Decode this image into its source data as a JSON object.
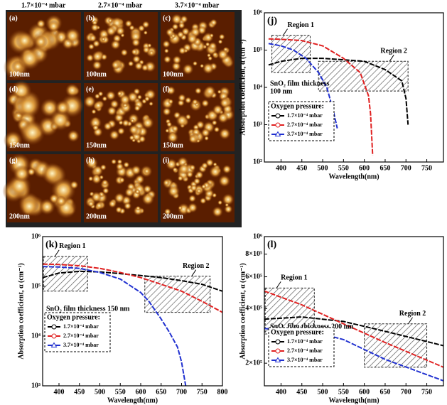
{
  "afm": {
    "columns": [
      "1.7×10⁻⁴ mbar",
      "2.7×10⁻⁴ mbar",
      "3.7×10⁻⁴ mbar"
    ],
    "panels": [
      {
        "label": "(a)",
        "thickness": "100nm"
      },
      {
        "label": "(b)",
        "thickness": "100nm"
      },
      {
        "label": "(c)",
        "thickness": "100nm"
      },
      {
        "label": "(d)",
        "thickness": "150nm"
      },
      {
        "label": "(e)",
        "thickness": "150nm"
      },
      {
        "label": "(f)",
        "thickness": "150nm"
      },
      {
        "label": "(g)",
        "thickness": "200nm"
      },
      {
        "label": "(h)",
        "thickness": "200nm"
      },
      {
        "label": "(i)",
        "thickness": "200nm"
      }
    ]
  },
  "chart_data": [
    {
      "type": "line",
      "label": "(j)",
      "xlabel": "Wavelength(nm)",
      "ylabel": "Absorption coefficient, α (cm⁻¹)",
      "log_y": true,
      "xlim": [
        360,
        790
      ],
      "xticks": [
        400,
        450,
        500,
        550,
        600,
        650,
        700,
        750
      ],
      "ylim": [
        100,
        1000000
      ],
      "yticks": [
        {
          "value": 100,
          "label": "10²"
        },
        {
          "value": 1000,
          "label": "10³"
        },
        {
          "value": 10000,
          "label": "10⁴"
        },
        {
          "value": 100000,
          "label": "10⁵"
        },
        {
          "value": 1000000,
          "label": "10⁶"
        }
      ],
      "annotation": [
        "SnO₂ film thickness",
        "100 nm"
      ],
      "legend_title": "Oxygen pressure:",
      "regions": [
        {
          "label": "Region 1",
          "x": [
            378,
            470
          ],
          "y": [
            25000,
            250000
          ]
        },
        {
          "label": "Region 2",
          "x": [
            490,
            705
          ],
          "y": [
            8000,
            50000
          ]
        }
      ],
      "series": [
        {
          "name": "1.7×10⁻⁴ mbar",
          "color": "#000000",
          "marker": "circle",
          "x": [
            370,
            400,
            450,
            500,
            550,
            600,
            650,
            690,
            700,
            705
          ],
          "values": [
            40000,
            50000,
            60000,
            60000,
            55000,
            50000,
            30000,
            15000,
            5000,
            1000
          ]
        },
        {
          "name": "2.7×10⁻⁴ mbar",
          "color": "#e02020",
          "marker": "circle",
          "x": [
            370,
            400,
            450,
            500,
            550,
            590,
            610,
            615,
            620
          ],
          "values": [
            200000,
            195000,
            180000,
            130000,
            60000,
            25000,
            6000,
            2000,
            150
          ]
        },
        {
          "name": "3.7×10⁻⁴ mbar",
          "color": "#2030d0",
          "marker": "triangle",
          "x": [
            370,
            400,
            430,
            460,
            490,
            510,
            525,
            535
          ],
          "values": [
            150000,
            130000,
            100000,
            60000,
            25000,
            10000,
            2500,
            800
          ]
        }
      ]
    },
    {
      "type": "line",
      "label": "(k)",
      "xlabel": "Wavelength(nm)",
      "ylabel": "Absorption coefficient, α (cm⁻¹)",
      "log_y": true,
      "xlim": [
        360,
        800
      ],
      "xticks": [
        400,
        450,
        500,
        550,
        600,
        650,
        700,
        750,
        800
      ],
      "ylim": [
        1000,
        1000000
      ],
      "yticks": [
        {
          "value": 1000,
          "label": "10³"
        },
        {
          "value": 10000,
          "label": "10⁴"
        },
        {
          "value": 100000,
          "label": "10⁵"
        },
        {
          "value": 1000000,
          "label": "10⁶"
        }
      ],
      "annotation": [
        "SnO₂ film thickness 150 nm"
      ],
      "legend_title": "Oxygen pressure:",
      "regions": [
        {
          "label": "Region 1",
          "x": [
            362,
            470
          ],
          "y": [
            80000,
            400000
          ]
        },
        {
          "label": "Region 2",
          "x": [
            610,
            770
          ],
          "y": [
            30000,
            160000
          ]
        }
      ],
      "series": [
        {
          "name": "1.7×10⁻⁴ mbar",
          "color": "#000000",
          "marker": "circle",
          "x": [
            360,
            400,
            450,
            500,
            550,
            600,
            650,
            700,
            750,
            800
          ],
          "values": [
            150000,
            185000,
            200000,
            195000,
            180000,
            165000,
            150000,
            130000,
            110000,
            80000
          ]
        },
        {
          "name": "2.7×10⁻⁴ mbar",
          "color": "#e02020",
          "marker": "circle",
          "x": [
            360,
            400,
            450,
            500,
            550,
            600,
            650,
            700,
            750,
            800
          ],
          "values": [
            280000,
            275000,
            260000,
            230000,
            190000,
            150000,
            110000,
            80000,
            50000,
            30000
          ]
        },
        {
          "name": "3.7×10⁻⁴ mbar",
          "color": "#2030d0",
          "marker": "triangle",
          "x": [
            360,
            400,
            450,
            500,
            550,
            600,
            620,
            650,
            670,
            690,
            700,
            710
          ],
          "values": [
            250000,
            245000,
            230000,
            190000,
            140000,
            75000,
            50000,
            22000,
            12000,
            6000,
            3000,
            1000
          ]
        }
      ]
    },
    {
      "type": "line",
      "label": "(l)",
      "xlabel": "Wavelength(nm)",
      "ylabel": "Absorption coefficient, α (cm⁻¹)",
      "log_y": true,
      "xlim": [
        360,
        790
      ],
      "xticks": [
        400,
        450,
        500,
        550,
        600,
        650,
        700,
        750
      ],
      "ylim": [
        150000,
        1000000
      ],
      "yticks": [
        {
          "value": 200000,
          "label": "2×10⁵"
        },
        {
          "value": 400000,
          "label": "4×10⁵"
        },
        {
          "value": 600000,
          "label": "6×10⁵"
        },
        {
          "value": 800000,
          "label": "8×10⁵"
        },
        {
          "value": 1000000,
          "label": "10⁶"
        }
      ],
      "annotation": [
        "SnO₂ film thickness 200 nm"
      ],
      "legend_title": "Oxygen pressure:",
      "regions": [
        {
          "label": "Region 1",
          "x": [
            362,
            480
          ],
          "y": [
            290000,
            520000
          ]
        },
        {
          "label": "Region 2",
          "x": [
            600,
            750
          ],
          "y": [
            190000,
            330000
          ]
        }
      ],
      "series": [
        {
          "name": "1.7×10⁻⁴ mbar",
          "color": "#000000",
          "marker": "circle",
          "x": [
            360,
            450,
            550,
            650,
            790
          ],
          "values": [
            350000,
            360000,
            340000,
            300000,
            250000
          ]
        },
        {
          "name": "2.7×10⁻⁴ mbar",
          "color": "#e02020",
          "marker": "circle",
          "x": [
            360,
            450,
            550,
            650,
            790
          ],
          "values": [
            500000,
            420000,
            330000,
            260000,
            190000
          ]
        },
        {
          "name": "3.7×10⁻⁴ mbar",
          "color": "#2030d0",
          "marker": "triangle",
          "x": [
            360,
            450,
            550,
            650,
            790
          ],
          "values": [
            310000,
            310000,
            270000,
            210000,
            160000
          ]
        }
      ]
    }
  ]
}
